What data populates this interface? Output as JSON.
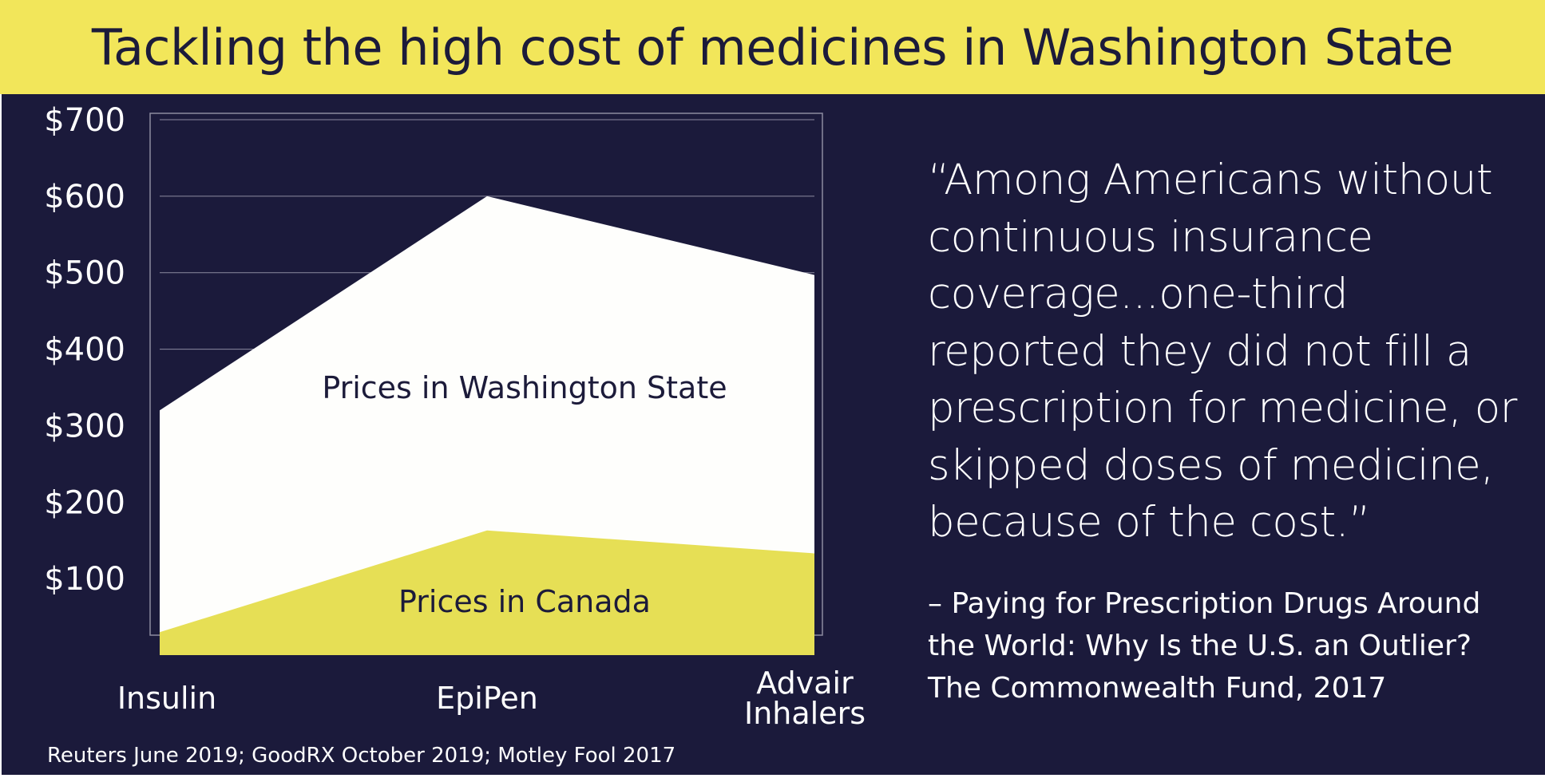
{
  "header": {
    "title": "Tackling the high cost of medicines in Washington State"
  },
  "colors": {
    "banner": "#f2e65a",
    "background": "#1b1a3b",
    "washington_area": "#fefefc",
    "canada_area": "#e6df55",
    "text_light": "#ffffff",
    "text_dark": "#1c1b3a"
  },
  "chart_data": {
    "type": "area",
    "categories": [
      "Insulin",
      "EpiPen",
      "Advair\nInhalers"
    ],
    "series": [
      {
        "name": "Prices in Washington State",
        "values": [
          320,
          600,
          497
        ]
      },
      {
        "name": "Prices in Canada",
        "values": [
          30,
          163,
          133
        ]
      }
    ],
    "y_ticks": [
      "$100",
      "$200",
      "$300",
      "$400",
      "$500",
      "$600",
      "$700"
    ],
    "y_tick_values": [
      100,
      200,
      300,
      400,
      500,
      600,
      700
    ],
    "ylim": [
      0,
      700
    ],
    "grid": true,
    "legend": "inline labels on areas"
  },
  "quote": {
    "lines": [
      "“Among Americans without",
      "continuous insurance",
      "coverage...one-third",
      "reported they did not fill a",
      "prescription for medicine, or",
      "skipped doses of medicine,",
      "because of the cost.”"
    ]
  },
  "attribution": {
    "lines": [
      "– Paying for Prescription Drugs Around",
      "the World: Why Is the U.S. an Outlier?",
      "The Commonwealth Fund, 2017"
    ]
  },
  "footer": {
    "source": "Reuters June 2019; GoodRX October 2019; Motley Fool 2017"
  }
}
